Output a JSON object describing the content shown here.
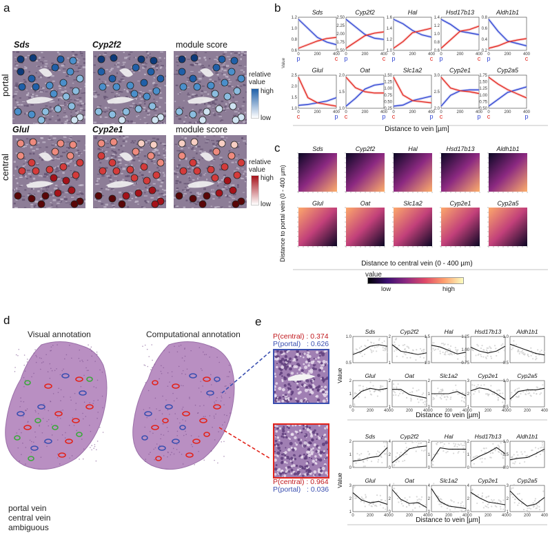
{
  "panels": {
    "a": {
      "letter": "a",
      "row_labels": [
        "portal",
        "central"
      ],
      "col_titles_top": [
        "Sds",
        "Cyp2f2",
        "module score"
      ],
      "col_titles_bottom": [
        "Glul",
        "Cyp2e1",
        "module score"
      ],
      "colorbar_top": {
        "title_line1": "relative",
        "title_line2": "value",
        "high": "high",
        "low": "low",
        "color": "#2c6fb3"
      },
      "colorbar_bottom": {
        "title_line1": "relative",
        "title_line2": "value",
        "high": "high",
        "low": "low",
        "color": "#c0161b"
      }
    },
    "b": {
      "letter": "b",
      "ylabel": "Value",
      "xlabel": "Distance to vein [µm]",
      "p_label": "p",
      "c_label": "c"
    },
    "c": {
      "letter": "c",
      "ylabel": "Distance to portal vein (0 - 400 µm)",
      "xlabel": "Distance to central vein (0 - 400 µm)",
      "colorbar_title": "value",
      "colorbar_low": "low",
      "colorbar_high": "high"
    },
    "d": {
      "letter": "d",
      "title_left": "Visual annotation",
      "title_right": "Computational annotation",
      "legend": [
        {
          "label": "portal vein",
          "color": "#3a4fb0"
        },
        {
          "label": "central vein",
          "color": "#e2231a"
        },
        {
          "label": "ambiguous",
          "color": "#3aa83a"
        }
      ]
    },
    "e": {
      "letter": "e",
      "probs_top": [
        "P(central) : 0.374",
        "P(portal)   : 0.626"
      ],
      "probs_bottom": [
        "P(central) : 0.964",
        "P(portal)   : 0.036"
      ],
      "ylabel": "Value",
      "xlabel": "Distance to vein [µm]"
    }
  },
  "genes_row1": [
    "Sds",
    "Cyp2f2",
    "Hal",
    "Hsd17b13",
    "Aldh1b1"
  ],
  "genes_row2": [
    "Glul",
    "Oat",
    "Slc1a2",
    "Cyp2e1",
    "Cyp2a5"
  ],
  "chart_data": [
    {
      "type": "line",
      "title": "",
      "xlabel": "Distance to vein [µm]",
      "ylabel": "Value",
      "xlim": [
        0,
        400
      ],
      "charts": [
        {
          "gene": "Sds",
          "yticks": [
            "0.6",
            "0.8",
            "1.0",
            "1.2"
          ],
          "x": [
            0,
            100,
            200,
            300,
            400
          ],
          "blue": [
            1.25,
            1.0,
            0.75,
            0.62,
            0.55
          ],
          "red": [
            0.45,
            0.55,
            0.65,
            0.72,
            0.75
          ]
        },
        {
          "gene": "Cyp2f2",
          "yticks": [
            "1.50",
            "1.75",
            "2.00",
            "2.25",
            "2.50"
          ],
          "x": [
            0,
            100,
            200,
            300,
            400
          ],
          "blue": [
            2.5,
            2.2,
            1.9,
            1.75,
            1.7
          ],
          "red": [
            1.35,
            1.6,
            1.85,
            1.95,
            2.0
          ]
        },
        {
          "gene": "Hal",
          "yticks": [
            "1.0",
            "1.2",
            "1.4",
            "1.6"
          ],
          "x": [
            0,
            100,
            200,
            300,
            400
          ],
          "blue": [
            1.6,
            1.5,
            1.35,
            1.25,
            1.2
          ],
          "red": [
            0.95,
            1.1,
            1.3,
            1.35,
            1.4
          ]
        },
        {
          "gene": "Hsd17b13",
          "yticks": [
            "0.6",
            "0.8",
            "1.0",
            "1.2",
            "1.4"
          ],
          "x": [
            0,
            100,
            200,
            300,
            400
          ],
          "blue": [
            1.45,
            1.3,
            1.1,
            1.05,
            1.0
          ],
          "red": [
            0.6,
            0.85,
            1.1,
            1.15,
            1.25
          ]
        },
        {
          "gene": "Aldh1b1",
          "yticks": [
            "0.2",
            "0.4",
            "0.6",
            "0.8"
          ],
          "x": [
            0,
            100,
            200,
            300,
            400
          ],
          "blue": [
            0.85,
            0.6,
            0.4,
            0.35,
            0.3
          ],
          "red": [
            0.25,
            0.3,
            0.38,
            0.42,
            0.45
          ]
        },
        {
          "gene": "Glul",
          "yticks": [
            "1.0",
            "1.5",
            "2.0",
            "2.5"
          ],
          "x": [
            0,
            100,
            200,
            300,
            400
          ],
          "blue": [
            0.95,
            1.0,
            1.1,
            1.2,
            1.4
          ],
          "red": [
            2.6,
            1.4,
            1.1,
            1.0,
            0.9
          ]
        },
        {
          "gene": "Oat",
          "yticks": [
            "1.0",
            "1.5",
            "2.0"
          ],
          "x": [
            0,
            100,
            200,
            300,
            400
          ],
          "blue": [
            0.9,
            1.2,
            1.55,
            1.7,
            1.75
          ],
          "red": [
            2.0,
            1.6,
            1.45,
            1.4,
            1.4
          ]
        },
        {
          "gene": "Slc1a2",
          "yticks": [
            "0.25",
            "0.50",
            "0.75",
            "1.00",
            "1.25",
            "1.50"
          ],
          "x": [
            0,
            100,
            200,
            300,
            400
          ],
          "blue": [
            0.2,
            0.25,
            0.45,
            0.55,
            0.65
          ],
          "red": [
            1.5,
            0.7,
            0.45,
            0.4,
            0.35
          ]
        },
        {
          "gene": "Cyp2e1",
          "yticks": [
            "2.0",
            "2.5",
            "3.0"
          ],
          "x": [
            0,
            100,
            200,
            300,
            400
          ],
          "blue": [
            1.7,
            2.3,
            2.55,
            2.6,
            2.6
          ],
          "red": [
            3.3,
            2.7,
            2.55,
            2.5,
            2.4
          ]
        },
        {
          "gene": "Cyp2a5",
          "yticks": [
            "0.50",
            "0.75",
            "1.00",
            "1.25",
            "1.50",
            "1.75"
          ],
          "x": [
            0,
            100,
            200,
            300,
            400
          ],
          "blue": [
            0.5,
            0.75,
            1.0,
            1.1,
            1.2
          ],
          "red": [
            1.55,
            1.3,
            1.1,
            0.95,
            0.8
          ]
        }
      ]
    },
    {
      "type": "heatmap",
      "xlabel": "Distance to central vein (0 - 400 µm)",
      "ylabel": "Distance to portal vein (0 - 400 µm)",
      "note_orientation": [
        "rising toward portal-far",
        "rising toward central-far"
      ],
      "genes": [
        "Sds",
        "Cyp2f2",
        "Hal",
        "Hsd17b13",
        "Aldh1b1",
        "Glul",
        "Oat",
        "Slc1a2",
        "Cyp2e1",
        "Cyp2a5"
      ]
    },
    {
      "type": "line",
      "xlabel": "Distance to vein [µm]",
      "ylabel": "Value",
      "xlim": [
        0,
        400
      ],
      "groups": [
        {
          "charts": [
            {
              "gene": "Sds",
              "yticks": [
                "0.5",
                "1.0"
              ],
              "x": [
                0,
                100,
                200,
                300,
                400
              ],
              "y": [
                0.6,
                0.8,
                1.1,
                1.2,
                1.1
              ]
            },
            {
              "gene": "Cyp2f2",
              "yticks": [
                "1",
                "2"
              ],
              "x": [
                0,
                100,
                200,
                300,
                400
              ],
              "y": [
                2.0,
                1.6,
                1.5,
                1.4,
                1.5
              ]
            },
            {
              "gene": "Hal",
              "yticks": [
                "1.0",
                "1.5"
              ],
              "x": [
                0,
                100,
                200,
                300,
                400
              ],
              "y": [
                1.6,
                1.5,
                1.3,
                1.1,
                1.2
              ]
            },
            {
              "gene": "Hsd17b13",
              "yticks": [
                "0.75",
                "1.00",
                "1.25"
              ],
              "x": [
                0,
                100,
                200,
                300,
                400
              ],
              "y": [
                1.2,
                1.0,
                0.9,
                1.0,
                1.25
              ]
            },
            {
              "gene": "Aldh1b1",
              "yticks": [
                "0.5",
                "1.0"
              ],
              "x": [
                0,
                100,
                200,
                300,
                400
              ],
              "y": [
                0.9,
                0.7,
                0.5,
                0.3,
                0.2
              ]
            },
            {
              "gene": "Glul",
              "yticks": [
                "0",
                "1",
                "2"
              ],
              "x": [
                0,
                100,
                200,
                300,
                400
              ],
              "y": [
                0.6,
                1.1,
                1.3,
                1.2,
                1.3
              ]
            },
            {
              "gene": "Oat",
              "yticks": [
                "1",
                "2"
              ],
              "x": [
                0,
                100,
                200,
                300,
                400
              ],
              "y": [
                1.6,
                1.6,
                1.3,
                1.2,
                1.1
              ]
            },
            {
              "gene": "Slc1a2",
              "yticks": [
                "0",
                "1",
                "2"
              ],
              "x": [
                0,
                100,
                200,
                300,
                400
              ],
              "y": [
                0.7,
                0.7,
                0.7,
                0.8,
                0.6
              ]
            },
            {
              "gene": "Cyp2e1",
              "yticks": [
                "1",
                "2",
                "3"
              ],
              "x": [
                0,
                100,
                200,
                300,
                400
              ],
              "y": [
                2.6,
                2.8,
                2.7,
                2.4,
                2.0
              ]
            },
            {
              "gene": "Cyp2a5",
              "yticks": [
                "0.5",
                "1.0"
              ],
              "x": [
                0,
                100,
                200,
                300,
                400
              ],
              "y": [
                0.4,
                0.9,
                1.0,
                1.0,
                1.1
              ]
            }
          ]
        },
        {
          "charts": [
            {
              "gene": "Sds",
              "yticks": [
                "0",
                "1",
                "2"
              ],
              "x": [
                0,
                100,
                200,
                300,
                400
              ],
              "y": [
                0.5,
                0.6,
                0.8,
                0.9,
                1.6
              ]
            },
            {
              "gene": "Cyp2f2",
              "yticks": [
                "0",
                "2",
                "4"
              ],
              "x": [
                0,
                100,
                200,
                300,
                400
              ],
              "y": [
                0.5,
                1.2,
                2.0,
                2.2,
                2.3
              ]
            },
            {
              "gene": "Hal",
              "yticks": [
                "0",
                "1",
                "2"
              ],
              "x": [
                0,
                100,
                200,
                300,
                400
              ],
              "y": [
                0.5,
                1.5,
                1.4,
                1.4,
                1.4
              ]
            },
            {
              "gene": "Hsd17b13",
              "yticks": [
                "0",
                "1",
                "2"
              ],
              "x": [
                0,
                100,
                200,
                300,
                400
              ],
              "y": [
                0.6,
                1.0,
                1.3,
                1.7,
                1.2
              ]
            },
            {
              "gene": "Aldh1b1",
              "yticks": [
                "0.0",
                "0.5",
                "1.0"
              ],
              "x": [
                0,
                100,
                200,
                300,
                400
              ],
              "y": [
                0.1,
                0.2,
                0.25,
                0.5,
                0.8
              ]
            },
            {
              "gene": "Glul",
              "yticks": [
                "1",
                "2",
                "3"
              ],
              "x": [
                0,
                100,
                200,
                300,
                400
              ],
              "y": [
                2.0,
                1.5,
                1.3,
                1.4,
                1.2
              ]
            },
            {
              "gene": "Oat",
              "yticks": [
                "0",
                "2",
                "4"
              ],
              "x": [
                0,
                100,
                200,
                300,
                400
              ],
              "y": [
                3.2,
                2.0,
                1.5,
                1.6,
                1.0
              ]
            },
            {
              "gene": "Slc1a2",
              "yticks": [
                "0",
                "2",
                "4"
              ],
              "x": [
                0,
                100,
                200,
                300,
                400
              ],
              "y": [
                3.6,
                1.5,
                0.8,
                0.6,
                0.4
              ]
            },
            {
              "gene": "Cyp2e1",
              "yticks": [
                "0",
                "2",
                "4"
              ],
              "x": [
                0,
                100,
                200,
                300,
                400
              ],
              "y": [
                3.0,
                2.6,
                2.3,
                2.2,
                2.1
              ]
            },
            {
              "gene": "Cyp2a5",
              "yticks": [
                "1",
                "2",
                "3"
              ],
              "x": [
                0,
                100,
                200,
                300,
                400
              ],
              "y": [
                2.4,
                1.6,
                1.0,
                1.2,
                1.8
              ]
            }
          ]
        }
      ]
    }
  ]
}
